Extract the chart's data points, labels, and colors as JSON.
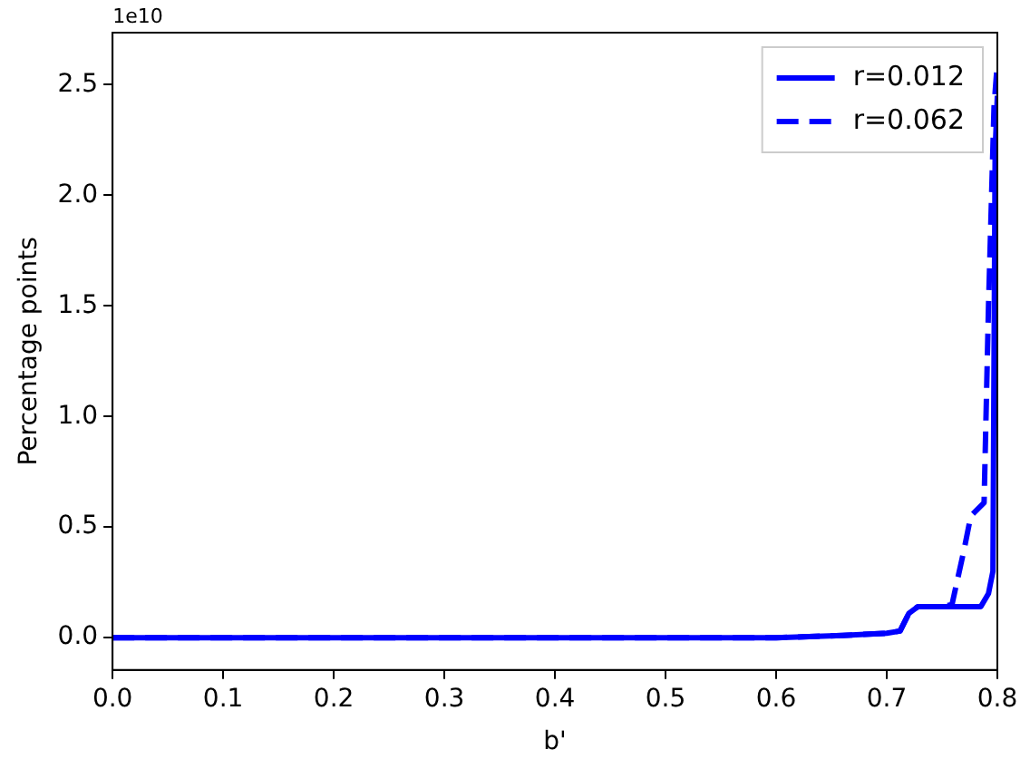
{
  "chart_data": {
    "type": "line",
    "xlabel": "b'",
    "ylabel": "Percentage points",
    "annotations": [
      "1e10"
    ],
    "xlim": [
      0,
      0.8
    ],
    "xticks": [
      {
        "value": 0,
        "label": "0.0"
      },
      0.1,
      0.2,
      0.3,
      0.4,
      0.5,
      0.6,
      0.7,
      0.8
    ],
    "ylim": [
      -0.146,
      2.735
    ],
    "yticks": [
      {
        "value": 0,
        "label": "0.0"
      },
      0.5,
      {
        "value": 1,
        "label": "1.0"
      },
      1.5,
      {
        "value": 2,
        "label": "2.0"
      },
      2.5
    ],
    "grid": false,
    "legend": "top right",
    "marker": "none",
    "series": [
      {
        "name": "r=0.012",
        "color": "#0000ff",
        "line_style": "solid",
        "x": [
          0,
          0.3,
          0.6,
          0.66,
          0.7,
          0.712,
          0.72,
          0.728,
          0.76,
          0.785,
          0.792,
          0.796,
          0.798,
          0.8
        ],
        "values": [
          0,
          0,
          0,
          0.01,
          0.02,
          0.03,
          0.11,
          0.14,
          0.14,
          0.14,
          0.2,
          0.3,
          2.2,
          2.45
        ]
      },
      {
        "name": "r=0.062",
        "color": "#0000ff",
        "line_style": "dashed",
        "x": [
          0,
          0.3,
          0.6,
          0.66,
          0.7,
          0.712,
          0.72,
          0.728,
          0.75,
          0.759,
          0.77,
          0.776,
          0.788,
          0.792,
          0.797,
          0.8
        ],
        "values": [
          0,
          0,
          0,
          0.01,
          0.02,
          0.03,
          0.11,
          0.14,
          0.14,
          0.15,
          0.4,
          0.55,
          0.61,
          1.5,
          2.4,
          2.6
        ]
      }
    ]
  }
}
